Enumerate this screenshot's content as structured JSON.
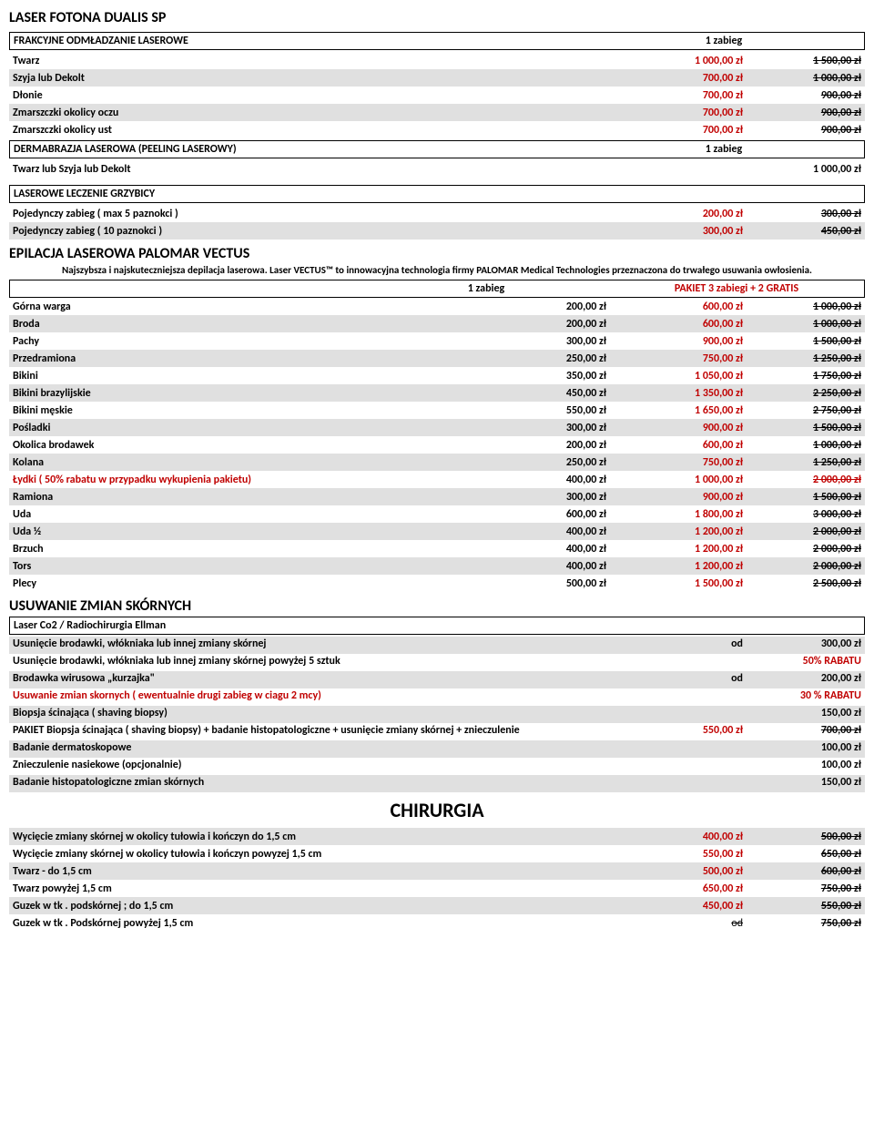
{
  "title": "LASER FOTONA DUALIS SP",
  "section1": {
    "header": "FRAKCYJNE ODMŁADZANIE LASEROWE",
    "col": "1 zabieg",
    "rows": [
      {
        "label": "Twarz",
        "price": "1 000,00 zł",
        "old": "1 500,00 zł",
        "shaded": false
      },
      {
        "label": "Szyja lub Dekolt",
        "price": "700,00 zł",
        "old": "1 000,00 zł",
        "shaded": true
      },
      {
        "label": "Dłonie",
        "price": "700,00 zł",
        "old": "900,00 zł",
        "shaded": false
      },
      {
        "label": "Zmarszczki okolicy oczu",
        "price": "700,00 zł",
        "old": "900,00 zł",
        "shaded": true
      },
      {
        "label": "Zmarszczki okolicy ust",
        "price": "700,00 zł",
        "old": "900,00 zł",
        "shaded": false
      }
    ]
  },
  "section2": {
    "header": "DERMABRAZJA LASEROWA (PEELING LASEROWY)",
    "col": "1 zabieg",
    "rows": [
      {
        "label": "Twarz lub Szyja lub Dekolt",
        "price": "1 000,00 zł",
        "shaded": false
      }
    ]
  },
  "section3": {
    "header": "LASEROWE LECZENIE GRZYBICY",
    "rows": [
      {
        "label": "Pojedynczy zabieg ( max 5 paznokci )",
        "price": "200,00 zł",
        "old": "300,00 zł",
        "shaded": false
      },
      {
        "label": "Pojedynczy zabieg ( 10 paznokci )",
        "price": "300,00 zł",
        "old": "450,00 zł",
        "shaded": true
      }
    ]
  },
  "epilacja": {
    "title": "EPILACJA LASEROWA PALOMAR VECTUS",
    "desc": "Najszybsza i najskuteczniejsza depilacja laserowa. Laser VECTUS™ to innowacyjna technologia firmy PALOMAR Medical Technologies przeznaczona do trwałego usuwania owłosienia.",
    "h1": "1 zabieg",
    "h2": "PAKIET 3 zabiegi + 2 GRATIS",
    "rows": [
      {
        "label": "Górna warga",
        "p1": "200,00 zł",
        "p2": "600,00 zł",
        "old": "1 000,00 zł",
        "shaded": false
      },
      {
        "label": "Broda",
        "p1": "200,00 zł",
        "p2": "600,00 zł",
        "old": "1 000,00 zł",
        "shaded": true
      },
      {
        "label": "Pachy",
        "p1": "300,00 zł",
        "p2": "900,00 zł",
        "old": "1 500,00 zł",
        "shaded": false
      },
      {
        "label": "Przedramiona",
        "p1": "250,00 zł",
        "p2": "750,00 zł",
        "old": "1 250,00 zł",
        "shaded": true
      },
      {
        "label": "Bikini",
        "p1": "350,00 zł",
        "p2": "1 050,00 zł",
        "old": "1 750,00 zł",
        "shaded": false
      },
      {
        "label": "Bikini brazylijskie",
        "p1": "450,00 zł",
        "p2": "1 350,00 zł",
        "old": "2 250,00 zł",
        "shaded": true
      },
      {
        "label": "Bikini męskie",
        "p1": "550,00 zł",
        "p2": "1 650,00 zł",
        "old": "2 750,00 zł",
        "shaded": false
      },
      {
        "label": "Pośladki",
        "p1": "300,00 zł",
        "p2": "900,00 zł",
        "old": "1 500,00 zł",
        "shaded": true
      },
      {
        "label": "Okolica brodawek",
        "p1": "200,00 zł",
        "p2": "600,00 zł",
        "old": "1 000,00 zł",
        "shaded": false
      },
      {
        "label": "Kolana",
        "p1": "250,00 zł",
        "p2": "750,00 zł",
        "old": "1 250,00 zł",
        "shaded": true
      },
      {
        "label": "Łydki ( 50% rabatu w przypadku wykupienia pakietu)",
        "red": true,
        "p1": "400,00 zł",
        "p2": "1 000,00 zł",
        "old": "2 000,00 zł",
        "old_red": true,
        "shaded": false
      },
      {
        "label": "Ramiona",
        "p1": "300,00 zł",
        "p2": "900,00 zł",
        "old": "1 500,00 zł",
        "shaded": true
      },
      {
        "label": "Uda",
        "p1": "600,00 zł",
        "p2": "1 800,00 zł",
        "old": "3 000,00 zł",
        "shaded": false
      },
      {
        "label": "Uda ½",
        "p1": "400,00 zł",
        "p2": "1 200,00 zł",
        "old": "2 000,00 zł",
        "shaded": true
      },
      {
        "label": "Brzuch",
        "p1": "400,00 zł",
        "p2": "1 200,00 zł",
        "old": "2 000,00 zł",
        "shaded": false
      },
      {
        "label": "Tors",
        "p1": "400,00 zł",
        "p2": "1 200,00 zł",
        "old": "2 000,00 zł",
        "shaded": true
      },
      {
        "label": "Plecy",
        "p1": "500,00 zł",
        "p2": "1 500,00 zł",
        "old": "2 500,00 zł",
        "shaded": false
      }
    ]
  },
  "skin": {
    "title": "USUWANIE ZMIAN SKÓRNYCH",
    "sub": "Laser Co2 / Radiochirurgia Ellman",
    "rows": [
      {
        "label": "Usunięcie brodawki, włókniaka lub innej zmiany skórnej",
        "od": "od",
        "price": "300,00 zł",
        "shaded": true
      },
      {
        "label": "Usunięcie brodawki, włókniaka lub innej zmiany skórnej  powyżej 5 sztuk",
        "price": "50% RABATU",
        "price_red": true,
        "shaded": false
      },
      {
        "label": "Brodawka wirusowa „kurzajka\"",
        "od": "od",
        "price": "200,00 zł",
        "shaded": true
      },
      {
        "label": "Usuwanie zmian skornych ( ewentualnie drugi zabieg w ciagu 2 mcy)",
        "label_red": true,
        "price": "30 % RABATU",
        "price_red": true,
        "shaded": false
      },
      {
        "label": "Biopsja ścinająca ( shaving biopsy)",
        "price": "150,00 zł",
        "shaded": true
      },
      {
        "label": "PAKIET Biopsja ścinająca ( shaving biopsy) + badanie histopatologiczne + usunięcie zmiany skórnej + znieczulenie",
        "price": "550,00 zł",
        "price_red": true,
        "old": "700,00 zł",
        "shaded": false
      },
      {
        "label": "Badanie dermatoskopowe",
        "price": "100,00 zł",
        "shaded": true
      },
      {
        "label": "Znieczulenie nasiekowe (opcjonalnie)",
        "price": "100,00 zł",
        "shaded": false
      },
      {
        "label": "Badanie histopatologiczne zmian skórnych",
        "price": "150,00 zł",
        "shaded": true
      }
    ]
  },
  "chirurgia": {
    "title": "CHIRURGIA",
    "rows": [
      {
        "label": "Wycięcie zmiany skórnej w okolicy tułowia i kończyn do 1,5 cm",
        "price": "400,00 zł",
        "old": "500,00 zł",
        "shaded": true
      },
      {
        "label": "Wycięcie zmiany skórnej w okolicy tułowia i kończyn powyzej 1,5 cm",
        "price": "550,00 zł",
        "old": "650,00 zł",
        "shaded": false
      },
      {
        "label": "Twarz - do 1,5 cm",
        "price": "500,00 zł",
        "old": "600,00 zł",
        "shaded": true
      },
      {
        "label": "Twarz powyżej 1,5 cm",
        "price": "650,00 zł",
        "old": "750,00 zł",
        "shaded": false
      },
      {
        "label": "Guzek w tk . podskórnej ; do 1,5 cm",
        "price": "450,00 zł",
        "old": "550,00 zł",
        "shaded": true
      },
      {
        "label": "Guzek w tk . Podskórnej powyżej 1,5 cm",
        "od_strike": "od",
        "old": "750,00 zł",
        "shaded": false
      }
    ]
  }
}
